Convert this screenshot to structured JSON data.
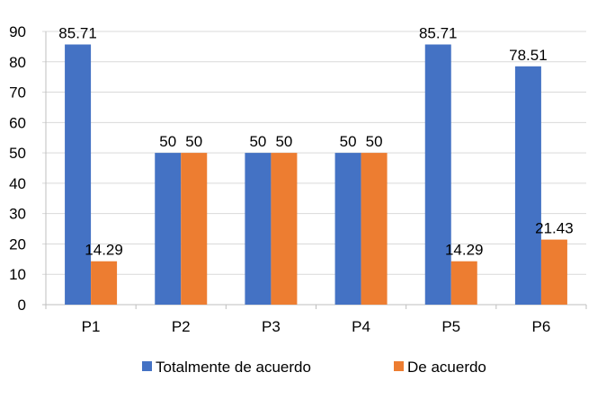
{
  "chart_data": {
    "type": "bar",
    "title": "",
    "xlabel": "",
    "ylabel": "",
    "categories": [
      "P1",
      "P2",
      "P3",
      "P4",
      "P5",
      "P6"
    ],
    "series": [
      {
        "name": "Totalmente de acuerdo",
        "color": "#4472C4",
        "values": [
          85.71,
          50,
          50,
          50,
          85.71,
          78.51
        ],
        "labels": [
          "85.71",
          "50",
          "50",
          "50",
          "85.71",
          "78.51"
        ]
      },
      {
        "name": "De acuerdo",
        "color": "#ED7D31",
        "values": [
          14.29,
          50,
          50,
          50,
          14.29,
          21.43
        ],
        "labels": [
          "14.29",
          "50",
          "50",
          "50",
          "14.29",
          "21.43"
        ]
      }
    ],
    "ylim": [
      0,
      90
    ],
    "yticks": [
      0,
      10,
      20,
      30,
      40,
      50,
      60,
      70,
      80,
      90
    ],
    "grid": true,
    "legend_position": "bottom"
  }
}
